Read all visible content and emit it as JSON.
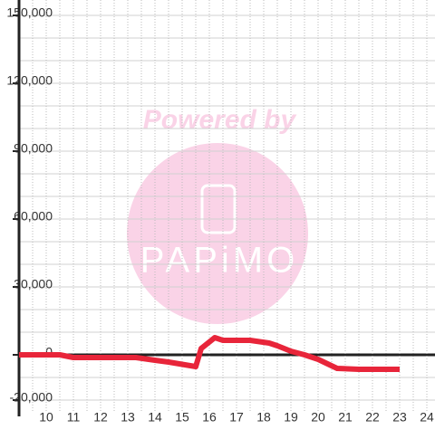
{
  "chart_data": {
    "type": "line",
    "watermark": {
      "title": "Powered by",
      "brand": "PAPiMO"
    },
    "x": [
      9,
      10.5,
      11,
      13.3,
      14,
      14.5,
      15.5,
      15.7,
      16.2,
      16.5,
      17.5,
      18.2,
      18.5,
      19,
      19.5,
      20,
      20.7,
      21.5,
      23
    ],
    "series": [
      {
        "color": "#e8253a",
        "values": [
          0,
          0,
          -1200,
          -1200,
          -2400,
          -3200,
          -5200,
          2800,
          7600,
          6400,
          6400,
          5200,
          4000,
          1600,
          0,
          -2000,
          -6000,
          -6400,
          -6400
        ]
      }
    ],
    "xlim": [
      9,
      24
    ],
    "xticks": [
      10,
      11,
      12,
      13,
      14,
      15,
      16,
      17,
      18,
      19,
      20,
      21,
      22,
      23,
      24
    ],
    "ylim": [
      -20000,
      150000
    ],
    "yticks": [
      {
        "value": -20000,
        "label": "-20,000"
      },
      0,
      {
        "value": 30000,
        "label": "30,000"
      },
      {
        "value": 60000,
        "label": "60,000"
      },
      {
        "value": 90000,
        "label": "90,000"
      },
      {
        "value": 120000,
        "label": "120,000"
      },
      {
        "value": 150000,
        "label": "150,000"
      }
    ],
    "ygrid": [
      -10000,
      10000,
      20000,
      40000,
      50000,
      70000,
      80000,
      100000,
      110000,
      130000,
      140000
    ],
    "xgrid": [
      9.5,
      10.5,
      11.5,
      12.5,
      13.5,
      14.5,
      15.5,
      16.5,
      17.5,
      18.5,
      19.5,
      20.5,
      21.5,
      22.5,
      23.5
    ],
    "grid": true
  }
}
